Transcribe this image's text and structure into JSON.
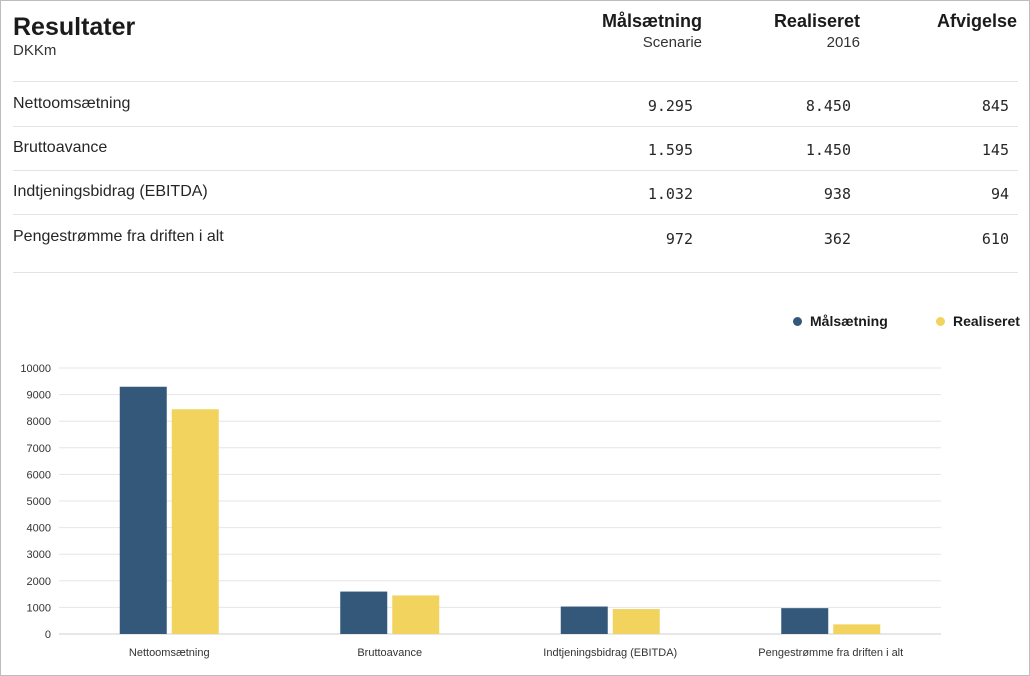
{
  "header": {
    "title": "Resultater",
    "unit": "DKKm",
    "columns": [
      {
        "title": "Målsætning",
        "subtitle": "Scenarie"
      },
      {
        "title": "Realiseret",
        "subtitle": "2016"
      },
      {
        "title": "Afvigelse",
        "subtitle": ""
      }
    ]
  },
  "table": {
    "rows": [
      {
        "label": "Nettoomsætning",
        "malsaetning": "9.295",
        "realiseret": "8.450",
        "afvigelse": "845"
      },
      {
        "label": "Bruttoavance",
        "malsaetning": "1.595",
        "realiseret": "1.450",
        "afvigelse": "145"
      },
      {
        "label": "Indtjeningsbidrag (EBITDA)",
        "malsaetning": "1.032",
        "realiseret": "938",
        "afvigelse": "94"
      },
      {
        "label": "Pengestrømme fra driften i alt",
        "malsaetning": "972",
        "realiseret": "362",
        "afvigelse": "610"
      }
    ]
  },
  "colors": {
    "malsaetning": "#33587a",
    "realiseret": "#f2d35e"
  },
  "chart_data": {
    "type": "bar",
    "categories": [
      "Nettoomsætning",
      "Bruttoavance",
      "Indtjeningsbidrag (EBITDA)",
      "Pengestrømme fra driften i alt"
    ],
    "series": [
      {
        "name": "Målsætning",
        "values": [
          9295,
          1595,
          1032,
          972
        ]
      },
      {
        "name": "Realiseret",
        "values": [
          8450,
          1450,
          938,
          362
        ]
      }
    ],
    "yticks": [
      "0",
      "1000",
      "2000",
      "3000",
      "4000",
      "5000",
      "6000",
      "7000",
      "8000",
      "9000",
      "10000"
    ],
    "ylim": [
      0,
      10000
    ],
    "legend_position": "top-right",
    "grid": true
  }
}
